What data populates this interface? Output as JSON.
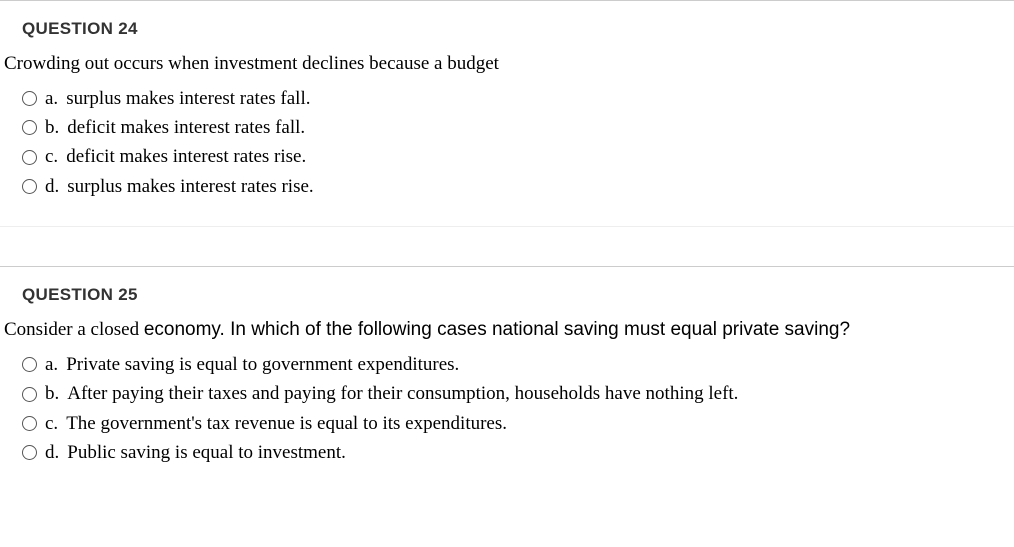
{
  "questions": [
    {
      "header": "QUESTION 24",
      "prompt": "Crowding out occurs when investment declines because a budget",
      "prompt_mixed": false,
      "options": [
        {
          "letter": "a.",
          "text": "surplus makes interest rates fall."
        },
        {
          "letter": "b.",
          "text": "deficit makes interest rates fall."
        },
        {
          "letter": "c.",
          "text": "deficit makes interest rates rise."
        },
        {
          "letter": "d.",
          "text": "surplus makes interest rates rise."
        }
      ]
    },
    {
      "header": "QUESTION 25",
      "prompt_part1": "Consider a closed ",
      "prompt_part2": "economy. In which of the following cases national saving must equal private saving?",
      "prompt_mixed": true,
      "options": [
        {
          "letter": "a.",
          "text": "Private saving is equal to government expenditures."
        },
        {
          "letter": "b.",
          "text": "After paying their taxes and paying for their consumption, households have nothing left."
        },
        {
          "letter": "c.",
          "text": "The government's tax revenue is equal to its expenditures."
        },
        {
          "letter": "d.",
          "text": "Public saving is equal to investment."
        }
      ]
    }
  ],
  "colors": {
    "text": "#000000",
    "header_text": "#333333",
    "border": "#cccccc",
    "radio_border": "#555555",
    "background": "#ffffff"
  }
}
